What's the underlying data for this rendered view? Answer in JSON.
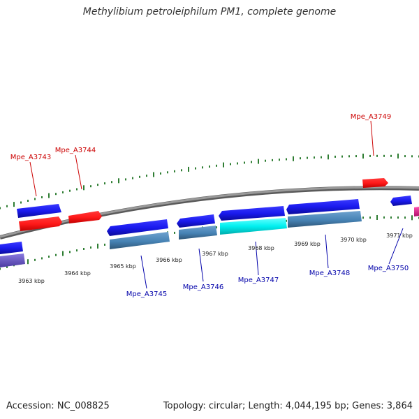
{
  "title": "Methylibium petroleiphilum PM1, complete genome",
  "footer": {
    "accession": "Accession: NC_008825",
    "summary": "Topology: circular; Length: 4,044,195 bp; Genes: 3,864"
  },
  "colors": {
    "forward_gene": "#ff1a1a",
    "reverse_gene": "#1a1aee",
    "reverse_gene_light": "#4682b4",
    "highlight_gene": "#00e5e5",
    "magenta_gene": "#e02080",
    "purple_gene": "#6a5acd",
    "forward_label": "#cc0000",
    "reverse_label": "#0000aa",
    "backbone": "#808080",
    "tick": "#2e7d32"
  },
  "scale_labels": [
    "3963 kbp",
    "3964 kbp",
    "3965 kbp",
    "3966 kbp",
    "3967 kbp",
    "3968 kbp",
    "3969 kbp",
    "3970 kbp",
    "3971 kbp"
  ],
  "gene_labels": {
    "forward": [
      "Mpe_A3743",
      "Mpe_A3744",
      "Mpe_A3749"
    ],
    "reverse": [
      "Mpe_A3745",
      "Mpe_A3746",
      "Mpe_A3747",
      "Mpe_A3748",
      "Mpe_A3750"
    ]
  }
}
